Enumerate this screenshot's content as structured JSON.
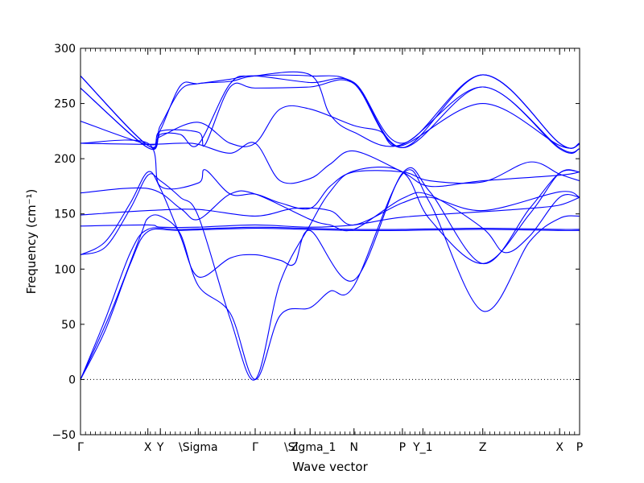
{
  "chart_data": {
    "type": "line",
    "title": "",
    "xlabel": "Wave vector",
    "ylabel": "Frequency (cm⁻¹)",
    "ylim": [
      -50,
      300
    ],
    "yticks": [
      -50,
      0,
      50,
      100,
      150,
      200,
      250,
      300
    ],
    "xlim": [
      0,
      1
    ],
    "zero_line": true,
    "grid": false,
    "legend": "none",
    "line_color": "#0000ff",
    "kpoints": [
      {
        "label": "Γ",
        "x": 0.0
      },
      {
        "label": "X",
        "x": 0.135
      },
      {
        "label": "Y",
        "x": 0.16
      },
      {
        "label": "\\Sigma",
        "x": 0.236
      },
      {
        "label": "Γ",
        "x": 0.35
      },
      {
        "label": "Z",
        "x": 0.429
      },
      {
        "label": "\\Sigma_1",
        "x": 0.46
      },
      {
        "label": "N",
        "x": 0.548
      },
      {
        "label": "P",
        "x": 0.645
      },
      {
        "label": "Y_1",
        "x": 0.686
      },
      {
        "label": "Z",
        "x": 0.806
      },
      {
        "label": "X",
        "x": 0.96
      },
      {
        "label": "P",
        "x": 1.0
      }
    ],
    "series": [
      {
        "values": [
          [
            0,
            0
          ],
          [
            0.05,
            45
          ],
          [
            0.1,
            105
          ],
          [
            0.135,
            134
          ],
          [
            0.2,
            135
          ],
          [
            0.35,
            137
          ],
          [
            0.45,
            136
          ],
          [
            0.55,
            135
          ],
          [
            0.645,
            135
          ],
          [
            0.8,
            136
          ],
          [
            0.96,
            135
          ],
          [
            1,
            135
          ]
        ]
      },
      {
        "values": [
          [
            0,
            0
          ],
          [
            0.05,
            55
          ],
          [
            0.1,
            115
          ],
          [
            0.135,
            136
          ],
          [
            0.2,
            136
          ],
          [
            0.35,
            138
          ],
          [
            0.45,
            137
          ],
          [
            0.55,
            136
          ],
          [
            0.645,
            136
          ],
          [
            0.8,
            137
          ],
          [
            0.96,
            136
          ],
          [
            1,
            136
          ]
        ]
      },
      {
        "values": [
          [
            0,
            0
          ],
          [
            0.06,
            60
          ],
          [
            0.12,
            130
          ],
          [
            0.135,
            146
          ],
          [
            0.16,
            148
          ],
          [
            0.2,
            132
          ],
          [
            0.236,
            85
          ],
          [
            0.3,
            60
          ],
          [
            0.35,
            0
          ],
          [
            0.4,
            58
          ],
          [
            0.46,
            65
          ],
          [
            0.5,
            80
          ],
          [
            0.548,
            85
          ],
          [
            0.645,
            186
          ],
          [
            0.7,
            160
          ],
          [
            0.806,
            62
          ],
          [
            0.9,
            125
          ],
          [
            0.96,
            146
          ],
          [
            1,
            148
          ]
        ]
      },
      {
        "values": [
          [
            0,
            113
          ],
          [
            0.05,
            125
          ],
          [
            0.1,
            160
          ],
          [
            0.135,
            188
          ],
          [
            0.16,
            173
          ],
          [
            0.2,
            130
          ],
          [
            0.236,
            93
          ],
          [
            0.3,
            110
          ],
          [
            0.35,
            113
          ],
          [
            0.4,
            108
          ],
          [
            0.429,
            105
          ],
          [
            0.46,
            135
          ],
          [
            0.548,
            90
          ],
          [
            0.645,
            187
          ],
          [
            0.7,
            170
          ],
          [
            0.806,
            105
          ],
          [
            0.9,
            155
          ],
          [
            0.96,
            187
          ],
          [
            1,
            188
          ]
        ]
      },
      {
        "values": [
          [
            0,
            113
          ],
          [
            0.05,
            120
          ],
          [
            0.1,
            155
          ],
          [
            0.135,
            185
          ],
          [
            0.16,
            180
          ],
          [
            0.2,
            165
          ],
          [
            0.236,
            148
          ],
          [
            0.3,
            55
          ],
          [
            0.35,
            0
          ],
          [
            0.4,
            88
          ],
          [
            0.46,
            140
          ],
          [
            0.5,
            170
          ],
          [
            0.548,
            189
          ],
          [
            0.645,
            188
          ],
          [
            0.7,
            145
          ],
          [
            0.806,
            105
          ],
          [
            0.9,
            150
          ],
          [
            0.96,
            187
          ],
          [
            1,
            188
          ]
        ]
      },
      {
        "values": [
          [
            0,
            139
          ],
          [
            0.135,
            140
          ],
          [
            0.16,
            138
          ],
          [
            0.236,
            138
          ],
          [
            0.35,
            140
          ],
          [
            0.46,
            138
          ],
          [
            0.548,
            140
          ],
          [
            0.645,
            147
          ],
          [
            0.806,
            152
          ],
          [
            0.9,
            155
          ],
          [
            0.96,
            158
          ],
          [
            1,
            165
          ]
        ]
      },
      {
        "values": [
          [
            0,
            149
          ],
          [
            0.135,
            153
          ],
          [
            0.236,
            154
          ],
          [
            0.35,
            148
          ],
          [
            0.429,
            155
          ],
          [
            0.5,
            153
          ],
          [
            0.548,
            140
          ],
          [
            0.645,
            160
          ],
          [
            0.7,
            165
          ],
          [
            0.806,
            153
          ],
          [
            0.96,
            170
          ],
          [
            1,
            165
          ]
        ]
      },
      {
        "values": [
          [
            0,
            169
          ],
          [
            0.135,
            173
          ],
          [
            0.2,
            155
          ],
          [
            0.236,
            145
          ],
          [
            0.3,
            168
          ],
          [
            0.35,
            168
          ],
          [
            0.46,
            145
          ],
          [
            0.5,
            140
          ],
          [
            0.548,
            136
          ],
          [
            0.645,
            164
          ],
          [
            0.7,
            167
          ],
          [
            0.806,
            137
          ],
          [
            0.85,
            115
          ],
          [
            0.9,
            130
          ],
          [
            0.96,
            165
          ],
          [
            1,
            165
          ]
        ]
      },
      {
        "values": [
          [
            0,
            214
          ],
          [
            0.135,
            214
          ],
          [
            0.16,
            175
          ],
          [
            0.236,
            178
          ],
          [
            0.25,
            190
          ],
          [
            0.3,
            168
          ],
          [
            0.35,
            168
          ],
          [
            0.4,
            160
          ],
          [
            0.46,
            155
          ],
          [
            0.5,
            175
          ],
          [
            0.548,
            188
          ],
          [
            0.645,
            188
          ],
          [
            0.7,
            180
          ],
          [
            0.806,
            179
          ],
          [
            0.9,
            197
          ],
          [
            0.96,
            186
          ],
          [
            1,
            180
          ]
        ]
      },
      {
        "values": [
          [
            0,
            214
          ],
          [
            0.135,
            213
          ],
          [
            0.2,
            214
          ],
          [
            0.236,
            213
          ],
          [
            0.3,
            205
          ],
          [
            0.35,
            214
          ],
          [
            0.4,
            180
          ],
          [
            0.46,
            182
          ],
          [
            0.5,
            195
          ],
          [
            0.548,
            207
          ],
          [
            0.645,
            188
          ],
          [
            0.7,
            175
          ],
          [
            0.806,
            180
          ],
          [
            0.96,
            185
          ],
          [
            1,
            188
          ]
        ]
      },
      {
        "values": [
          [
            0,
            234
          ],
          [
            0.135,
            213
          ],
          [
            0.16,
            220
          ],
          [
            0.236,
            233
          ],
          [
            0.3,
            214
          ],
          [
            0.35,
            214
          ],
          [
            0.4,
            245
          ],
          [
            0.46,
            245
          ],
          [
            0.548,
            230
          ],
          [
            0.6,
            225
          ],
          [
            0.645,
            212
          ],
          [
            0.806,
            250
          ],
          [
            0.96,
            212
          ],
          [
            1,
            213
          ]
        ]
      },
      {
        "values": [
          [
            0,
            264
          ],
          [
            0.135,
            210
          ],
          [
            0.16,
            225
          ],
          [
            0.236,
            224
          ],
          [
            0.25,
            213
          ],
          [
            0.3,
            265
          ],
          [
            0.35,
            264
          ],
          [
            0.46,
            265
          ],
          [
            0.548,
            268
          ],
          [
            0.645,
            210
          ],
          [
            0.806,
            265
          ],
          [
            0.96,
            209
          ],
          [
            1,
            209
          ]
        ]
      },
      {
        "values": [
          [
            0,
            264
          ],
          [
            0.135,
            210
          ],
          [
            0.16,
            222
          ],
          [
            0.2,
            222
          ],
          [
            0.236,
            213
          ],
          [
            0.3,
            268
          ],
          [
            0.35,
            275
          ],
          [
            0.46,
            276
          ],
          [
            0.5,
            240
          ],
          [
            0.548,
            224
          ],
          [
            0.645,
            213
          ],
          [
            0.806,
            265
          ],
          [
            0.96,
            210
          ],
          [
            1,
            209
          ]
        ]
      },
      {
        "values": [
          [
            0,
            275
          ],
          [
            0.135,
            212
          ],
          [
            0.16,
            230
          ],
          [
            0.2,
            262
          ],
          [
            0.236,
            268
          ],
          [
            0.3,
            270
          ],
          [
            0.35,
            275
          ],
          [
            0.46,
            275
          ],
          [
            0.548,
            268
          ],
          [
            0.645,
            210
          ],
          [
            0.806,
            276
          ],
          [
            0.96,
            214
          ],
          [
            1,
            214
          ]
        ]
      },
      {
        "values": [
          [
            0,
            275
          ],
          [
            0.135,
            212
          ],
          [
            0.16,
            226
          ],
          [
            0.2,
            266
          ],
          [
            0.236,
            268
          ],
          [
            0.3,
            272
          ],
          [
            0.35,
            275
          ],
          [
            0.46,
            269
          ],
          [
            0.548,
            269
          ],
          [
            0.645,
            214
          ],
          [
            0.806,
            276
          ],
          [
            0.96,
            214
          ],
          [
            1,
            214
          ]
        ]
      }
    ]
  }
}
